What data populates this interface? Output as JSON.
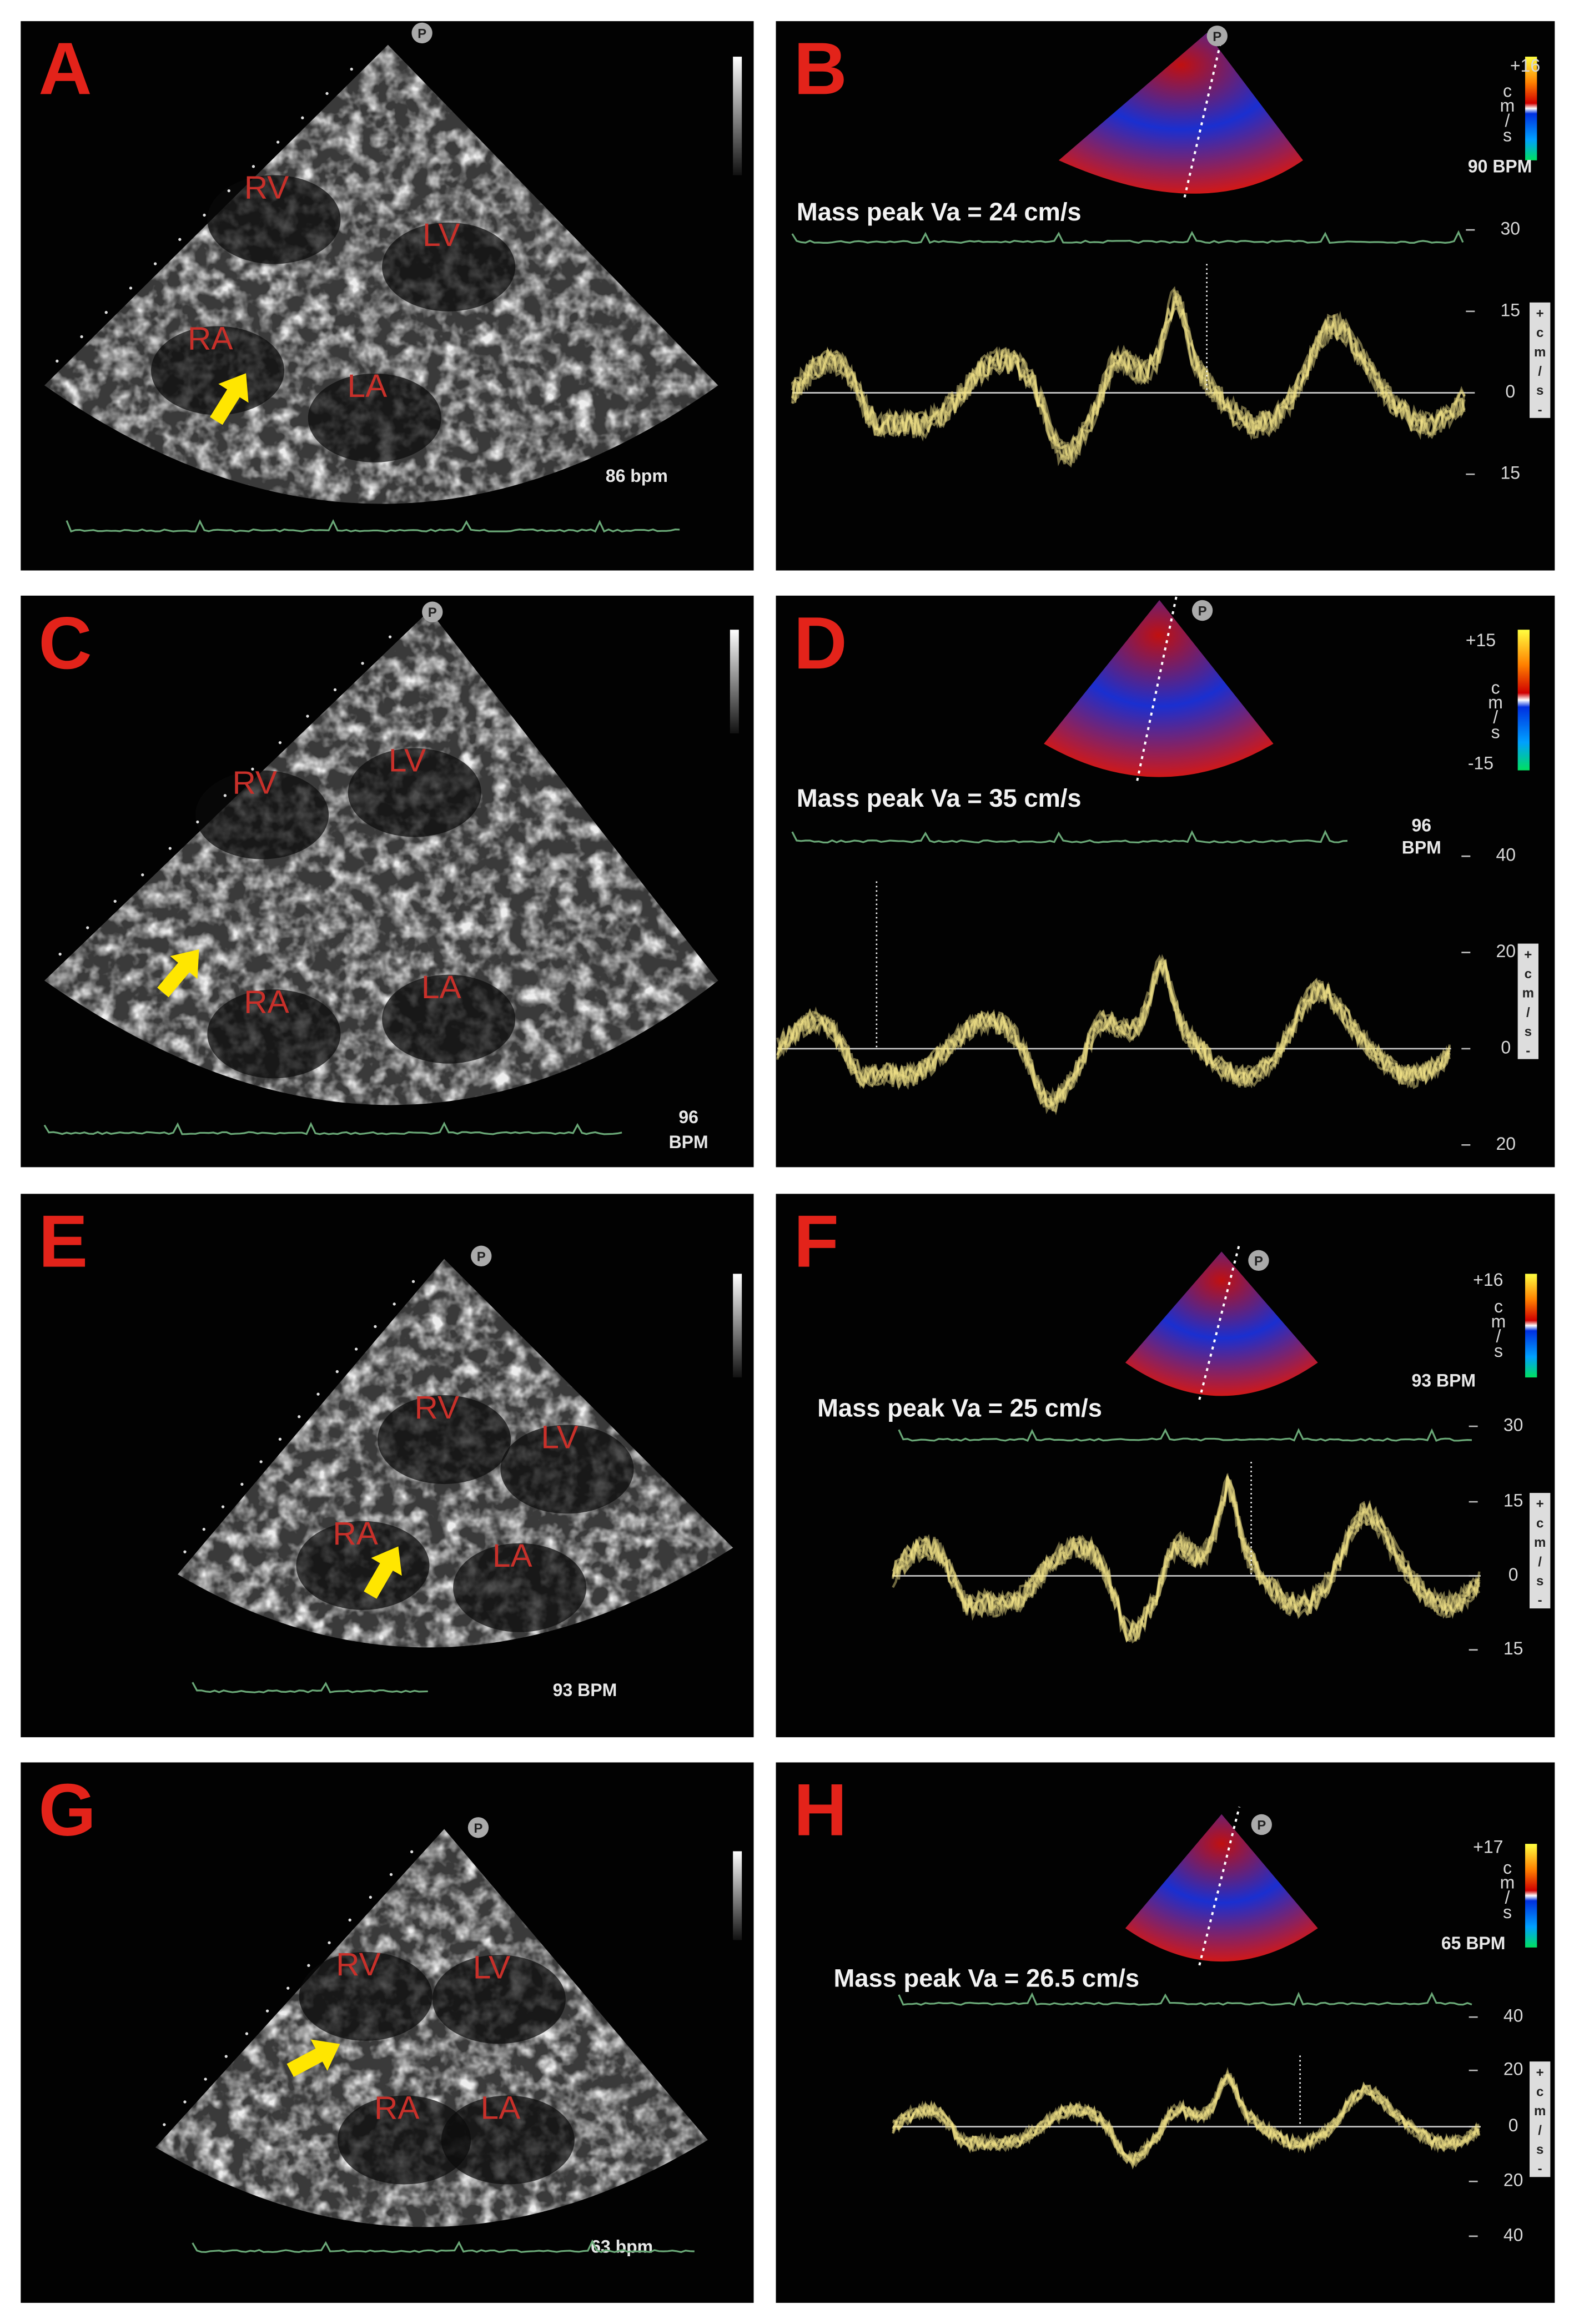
{
  "panels": [
    {
      "letter": "A",
      "marker": "P",
      "chambers": [
        "RV",
        "LV",
        "RA",
        "LA"
      ],
      "rate": [
        "86 bpm"
      ]
    },
    {
      "letter": "B",
      "marker": "P",
      "scale": [
        "+16"
      ],
      "scale_unit": [
        "c",
        "m",
        "/",
        "s"
      ],
      "rate": [
        "90 BPM"
      ],
      "measurement": "Mass peak Va = 24 cm/s",
      "ticks": [
        "30",
        "15",
        "0",
        "15"
      ],
      "axis_unit": [
        "+",
        "c",
        "m",
        "/",
        "s",
        "-"
      ]
    },
    {
      "letter": "C",
      "marker": "P",
      "chambers": [
        "RV",
        "LV",
        "RA",
        "LA"
      ],
      "rate": [
        "96",
        "BPM"
      ]
    },
    {
      "letter": "D",
      "marker": "P",
      "scale": [
        "+15",
        "-15"
      ],
      "scale_unit": [
        "c",
        "m",
        "/",
        "s"
      ],
      "rate": [
        "96",
        "BPM"
      ],
      "measurement": "Mass peak Va = 35 cm/s",
      "ticks": [
        "40",
        "20",
        "0",
        "20"
      ],
      "axis_unit": [
        "+",
        "c",
        "m",
        "/",
        "s",
        "-"
      ]
    },
    {
      "letter": "E",
      "marker": "P",
      "chambers": [
        "RV",
        "LV",
        "RA",
        "LA"
      ],
      "rate": [
        "93 BPM"
      ]
    },
    {
      "letter": "F",
      "marker": "P",
      "scale": [
        "+16"
      ],
      "scale_unit": [
        "c",
        "m",
        "/",
        "s"
      ],
      "rate": [
        "93 BPM"
      ],
      "measurement": "Mass peak Va = 25 cm/s",
      "ticks": [
        "30",
        "15",
        "0",
        "15"
      ],
      "axis_unit": [
        "+",
        "c",
        "m",
        "/",
        "s",
        "-"
      ]
    },
    {
      "letter": "G",
      "marker": "P",
      "chambers": [
        "RV",
        "LV",
        "RA",
        "LA"
      ],
      "rate": [
        "63 bpm"
      ]
    },
    {
      "letter": "H",
      "marker": "P",
      "scale": [
        "+17"
      ],
      "scale_unit": [
        "c",
        "m",
        "/",
        "s"
      ],
      "rate": [
        "65 BPM"
      ],
      "measurement": "Mass peak Va = 26.5 cm/s",
      "ticks": [
        "40",
        "20",
        "0",
        "20",
        "40"
      ],
      "axis_unit": [
        "+",
        "c",
        "m",
        "/",
        "s",
        "-"
      ]
    }
  ]
}
